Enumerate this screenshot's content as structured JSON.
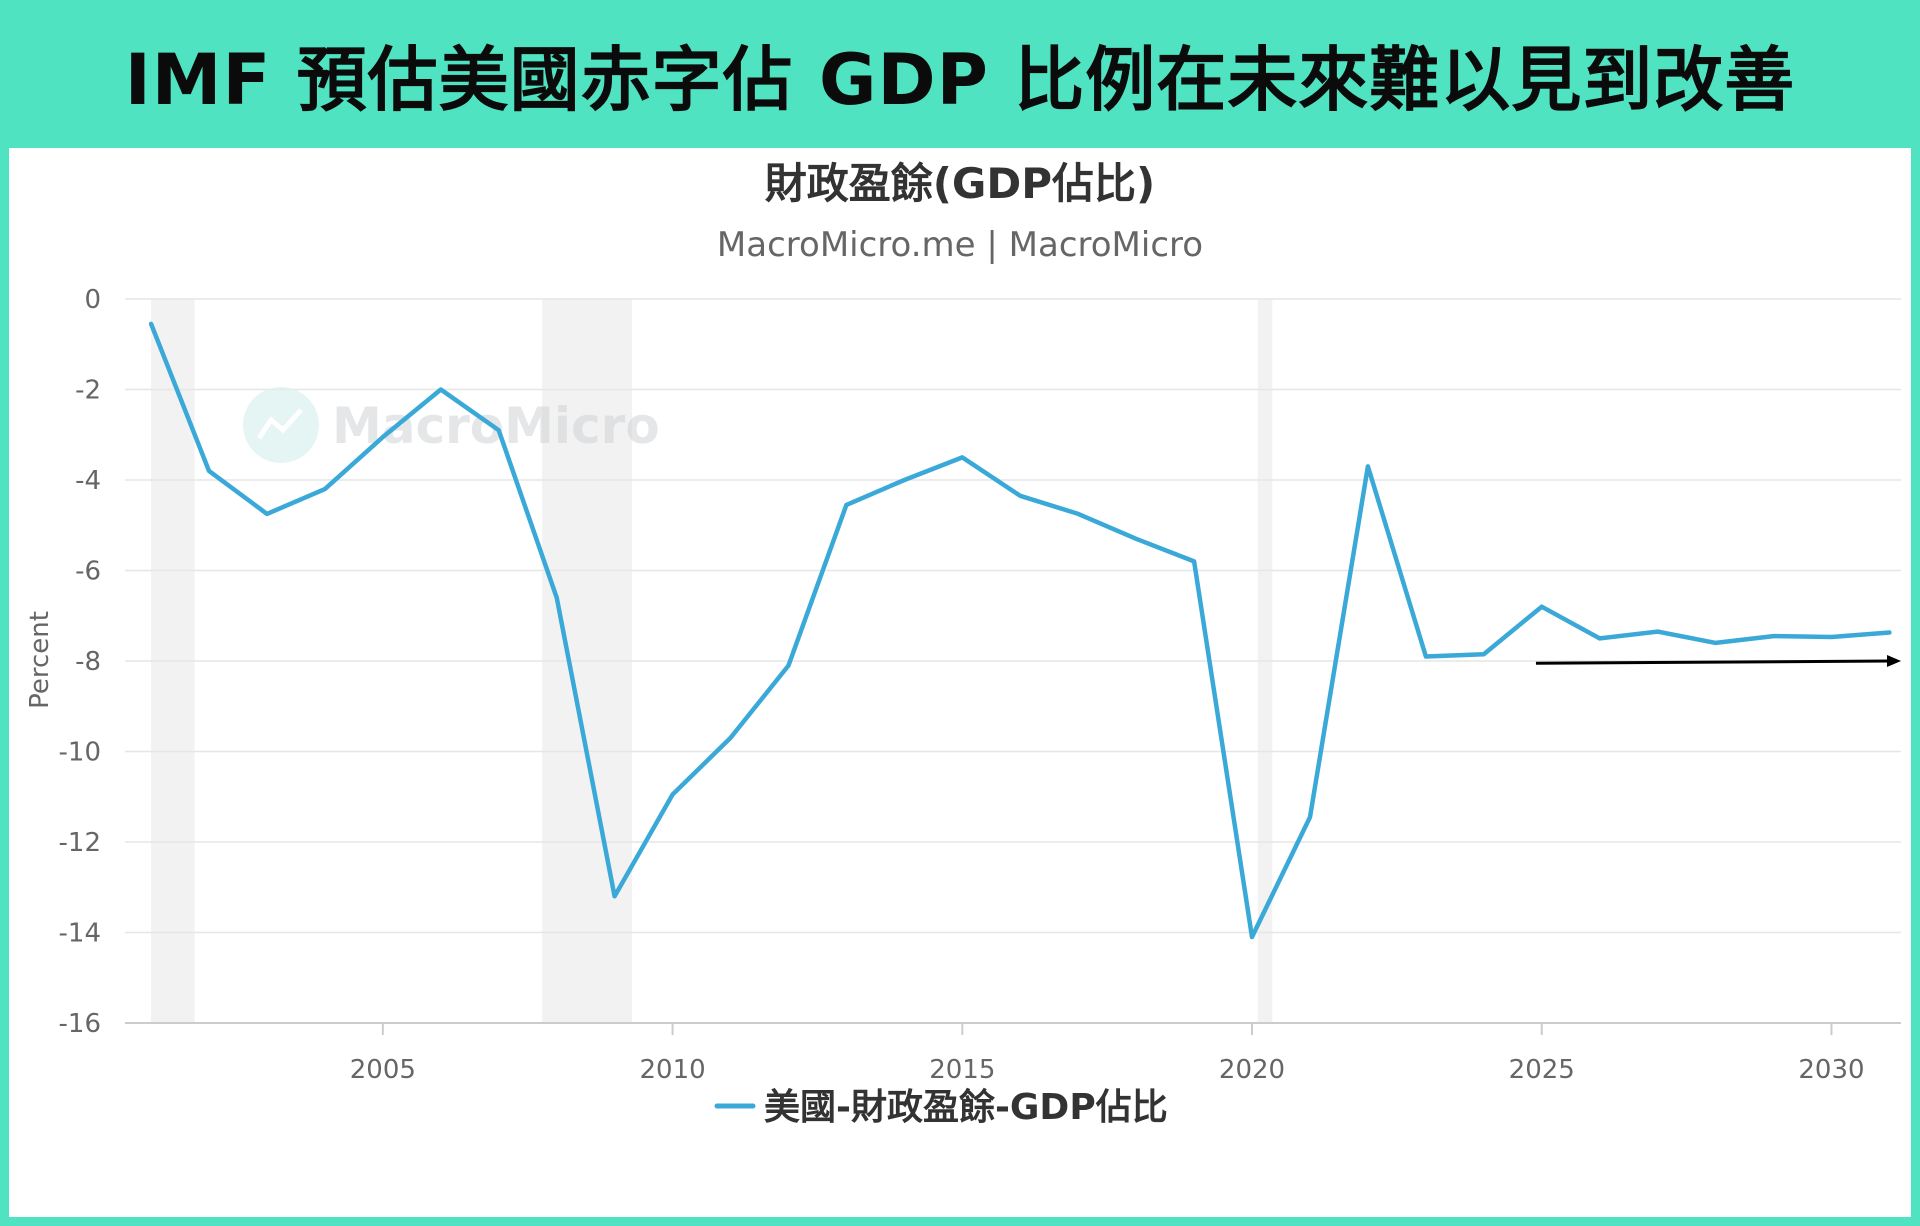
{
  "banner": {
    "title": "IMF 預估美國赤字佔 GDP 比例在未來難以見到改善"
  },
  "colors": {
    "background": "#50e3c2",
    "series": "#3aa9d8",
    "recession_band": "#f2f2f2",
    "arrow": "#000000"
  },
  "watermark": {
    "text": "MacroMicro",
    "icon": "chart-trend-icon"
  },
  "chart_data": {
    "type": "line",
    "title": "財政盈餘(GDP佔比)",
    "subtitle": "MacroMicro.me | MacroMicro",
    "ylabel": "Percent",
    "xlabel": "",
    "ylim": [
      -16,
      0
    ],
    "yticks": [
      0,
      -2,
      -4,
      -6,
      -8,
      -10,
      -12,
      -14,
      -16
    ],
    "xlim": [
      2000.55,
      2031.2
    ],
    "xticks": [
      2005,
      2010,
      2015,
      2020,
      2025,
      2030
    ],
    "grid": true,
    "legend_position": "bottom-center",
    "recession_bands": [
      [
        2001.0,
        2001.75
      ],
      [
        2007.75,
        2009.3
      ],
      [
        2020.1,
        2020.35
      ]
    ],
    "series": [
      {
        "name": "美國-財政盈餘-GDP佔比",
        "x": [
          2001,
          2002,
          2003,
          2004,
          2005,
          2006,
          2007,
          2008,
          2009,
          2010,
          2011,
          2012,
          2013,
          2014,
          2015,
          2016,
          2017,
          2018,
          2019,
          2020,
          2021,
          2022,
          2023,
          2024,
          2025,
          2026,
          2027,
          2028,
          2029,
          2030,
          2031
        ],
        "values": [
          -0.55,
          -3.8,
          -4.75,
          -4.2,
          -3.05,
          -2.0,
          -2.9,
          -6.6,
          -13.2,
          -10.95,
          -9.7,
          -8.1,
          -4.55,
          -4.0,
          -3.5,
          -4.35,
          -4.75,
          -5.3,
          -5.8,
          -14.1,
          -11.45,
          -3.7,
          -7.9,
          -7.85,
          -6.8,
          -7.5,
          -7.35,
          -7.6,
          -7.45,
          -7.47,
          -7.37
        ]
      }
    ],
    "annotations": [
      {
        "type": "arrow",
        "from": [
          2024.9,
          -8.05
        ],
        "to": [
          2031.2,
          -8.0
        ]
      }
    ]
  }
}
